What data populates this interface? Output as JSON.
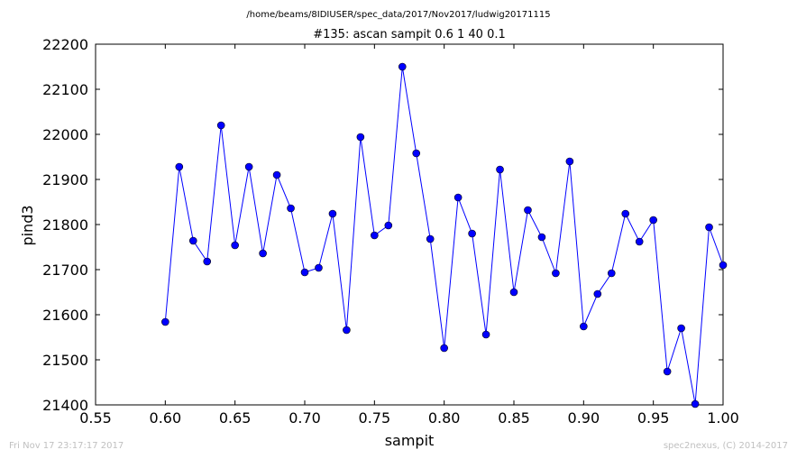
{
  "suptitle": "/home/beams/8IDIUSER/spec_data/2017/Nov2017/ludwig20171115",
  "footer": {
    "left": "Fri Nov 17 23:17:17 2017",
    "right": "spec2nexus, (C) 2014-2017"
  },
  "chart_data": {
    "type": "line",
    "title": "#135: ascan  sampit 0.6 1  40 0.1",
    "xlabel": "sampit",
    "ylabel": "pind3",
    "xlim": [
      0.55,
      1.0
    ],
    "ylim": [
      21400,
      22200
    ],
    "xticks": [
      0.55,
      0.6,
      0.65,
      0.7,
      0.75,
      0.8,
      0.85,
      0.9,
      0.95,
      1.0
    ],
    "xtick_labels": [
      "0.55",
      "0.60",
      "0.65",
      "0.70",
      "0.75",
      "0.80",
      "0.85",
      "0.90",
      "0.95",
      "1.00"
    ],
    "yticks": [
      21400,
      21500,
      21600,
      21700,
      21800,
      21900,
      22000,
      22100,
      22200
    ],
    "ytick_labels": [
      "21400",
      "21500",
      "21600",
      "21700",
      "21800",
      "21900",
      "22000",
      "22100",
      "22200"
    ],
    "grid": false,
    "line_color": "#0000ff",
    "marker": "circle",
    "series": [
      {
        "x": [
          0.6,
          0.61,
          0.62,
          0.63,
          0.64,
          0.65,
          0.66,
          0.67,
          0.68,
          0.69,
          0.7,
          0.71,
          0.72,
          0.73,
          0.74,
          0.75,
          0.76,
          0.77,
          0.78,
          0.79,
          0.8,
          0.81,
          0.82,
          0.83,
          0.84,
          0.85,
          0.86,
          0.87,
          0.88,
          0.89,
          0.9,
          0.91,
          0.92,
          0.93,
          0.94,
          0.95,
          0.96,
          0.97,
          0.98,
          0.99,
          1.0
        ],
        "y": [
          21584,
          21928,
          21764,
          21718,
          22020,
          21754,
          21928,
          21736,
          21910,
          21836,
          21694,
          21704,
          21824,
          21566,
          21994,
          21776,
          21798,
          22150,
          21958,
          21768,
          21526,
          21860,
          21780,
          21556,
          21922,
          21650,
          21832,
          21772,
          21692,
          21940,
          21574,
          21646,
          21692,
          21824,
          21762,
          21810,
          21474,
          21570,
          21402,
          21794,
          21710
        ]
      }
    ]
  }
}
